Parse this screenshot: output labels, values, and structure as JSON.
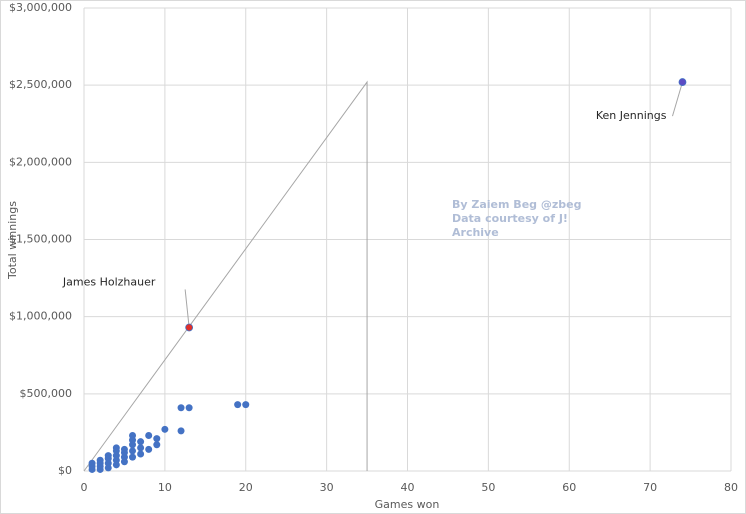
{
  "chart_data": {
    "type": "scatter",
    "x_label": "Games won",
    "y_label": "Total winnings",
    "x": [
      1,
      1,
      1,
      2,
      2,
      2,
      2,
      3,
      3,
      3,
      3,
      4,
      4,
      4,
      4,
      4,
      5,
      5,
      5,
      5,
      6,
      6,
      6,
      6,
      6,
      7,
      7,
      7,
      8,
      8,
      9,
      9,
      10,
      12,
      12,
      13,
      19,
      20
    ],
    "y": [
      10000,
      30000,
      50000,
      10000,
      30000,
      50000,
      70000,
      20000,
      50000,
      80000,
      100000,
      40000,
      70000,
      100000,
      130000,
      150000,
      60000,
      90000,
      120000,
      140000,
      90000,
      130000,
      170000,
      200000,
      230000,
      110000,
      150000,
      190000,
      140000,
      230000,
      170000,
      210000,
      270000,
      410000,
      260000,
      410000,
      430000,
      430000
    ],
    "color": "#4472c4",
    "annotations": [
      {
        "text": "James Holzhauer",
        "x": 13,
        "y": 930000,
        "color": "#e0302a"
      },
      {
        "text": "Ken Jennings",
        "x": 74,
        "y": 2520000,
        "color": "#5b4cc4"
      }
    ],
    "guide_line": {
      "x": [
        0,
        35,
        35
      ],
      "y": [
        0,
        2520000,
        0
      ],
      "color": "#a6a6a6"
    },
    "credit": [
      "By Zaiem Beg @zbeg",
      "Data courtesy of J!",
      "Archive"
    ],
    "xlim": [
      0,
      80
    ],
    "xticks": [
      0,
      10,
      20,
      30,
      40,
      50,
      60,
      70,
      80
    ],
    "ylim": [
      0,
      3000000
    ],
    "yticks": [
      {
        "value": 0,
        "label": "$0"
      },
      {
        "value": 500000,
        "label": "$500,000"
      },
      {
        "value": 1000000,
        "label": "$1,000,000"
      },
      {
        "value": 1500000,
        "label": "$1,500,000"
      },
      {
        "value": 2000000,
        "label": "$2,000,000"
      },
      {
        "value": 2500000,
        "label": "$2,500,000"
      },
      {
        "value": 3000000,
        "label": "$3,000,000"
      }
    ],
    "grid": true
  }
}
